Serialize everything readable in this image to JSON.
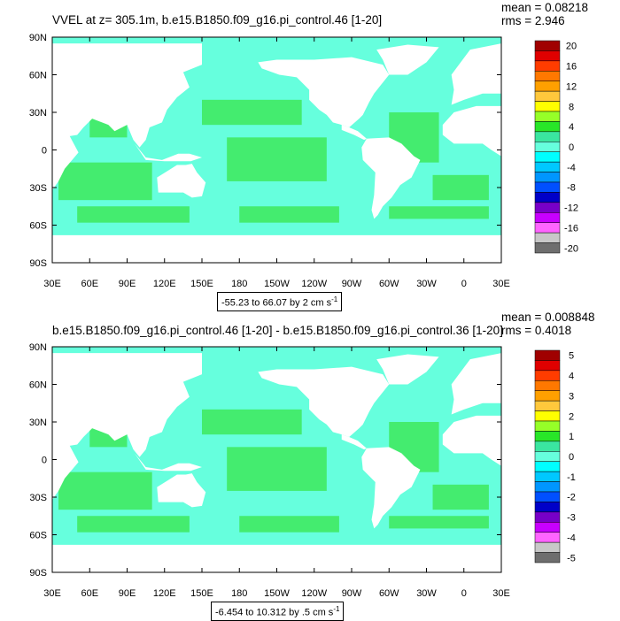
{
  "colors": {
    "land": "#ffffff",
    "ocean_main": "#66ffdd",
    "ocean_alt": "#3ae64a",
    "frame": "#000000"
  },
  "chart_data": [
    {
      "type": "heatmap",
      "title": "VVEL at z= 305.1m, b.e15.B1850.f09_g16.pi_control.46 [1-20]",
      "mean_label": "mean = 0.08218",
      "rms_label": "rms = 2.946",
      "info_label": "-55.23 to 66.07 by 2 cm s",
      "info_exp": "-1",
      "y_ticks": [
        "90N",
        "60N",
        "30N",
        "0",
        "30S",
        "60S",
        "90S"
      ],
      "x_ticks": [
        "30E",
        "60E",
        "90E",
        "120E",
        "150E",
        "180",
        "150W",
        "120W",
        "90W",
        "60W",
        "30W",
        "0",
        "30E"
      ],
      "colorbar_labels": [
        "20",
        "16",
        "12",
        "8",
        "4",
        "0",
        "-4",
        "-8",
        "-12",
        "-16",
        "-20"
      ],
      "colorbar_colors": [
        "#a00000",
        "#e00000",
        "#ff3c00",
        "#ff7800",
        "#ffa000",
        "#ffc83c",
        "#ffff00",
        "#96ff28",
        "#28e628",
        "#3ae6a0",
        "#66ffdd",
        "#00ffff",
        "#00c8ff",
        "#0096ff",
        "#0050ff",
        "#0000c8",
        "#7800c8",
        "#c800ff",
        "#ff64ff",
        "#c8c8c8",
        "#6e6e6e"
      ]
    },
    {
      "type": "heatmap",
      "title": "b.e15.B1850.f09_g16.pi_control.46 [1-20] - b.e15.B1850.f09_g16.pi_control.36 [1-20]",
      "mean_label": "mean = 0.008848",
      "rms_label": "rms = 0.4018",
      "info_label": "-6.454 to 10.312 by .5 cm s",
      "info_exp": "-1",
      "y_ticks": [
        "90N",
        "60N",
        "30N",
        "0",
        "30S",
        "60S",
        "90S"
      ],
      "x_ticks": [
        "30E",
        "60E",
        "90E",
        "120E",
        "150E",
        "180",
        "150W",
        "120W",
        "90W",
        "60W",
        "30W",
        "0",
        "30E"
      ],
      "colorbar_labels": [
        "5",
        "4",
        "3",
        "2",
        "1",
        "0",
        "-1",
        "-2",
        "-3",
        "-4",
        "-5"
      ],
      "colorbar_colors": [
        "#a00000",
        "#e00000",
        "#ff3c00",
        "#ff7800",
        "#ffa000",
        "#ffc83c",
        "#ffff00",
        "#96ff28",
        "#28e628",
        "#3ae6a0",
        "#66ffdd",
        "#00ffff",
        "#00c8ff",
        "#0096ff",
        "#0050ff",
        "#0000c8",
        "#7800c8",
        "#c800ff",
        "#ff64ff",
        "#c8c8c8",
        "#6e6e6e"
      ]
    }
  ]
}
